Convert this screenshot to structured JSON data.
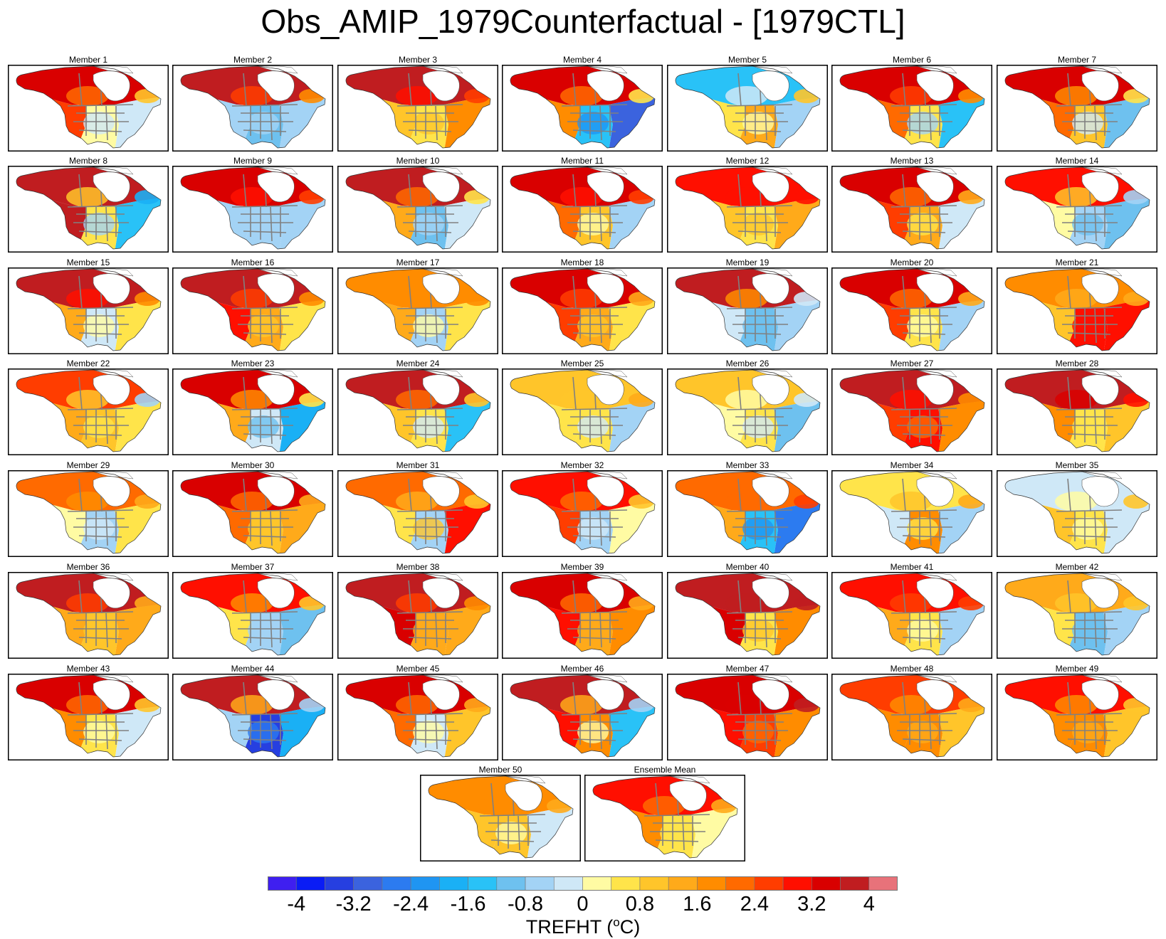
{
  "title": "Obs_AMIP_1979Counterfactual - [1979CTL]",
  "panels": [
    {
      "label": "Member 1",
      "anomaly": {
        "north": 3.5,
        "west": 2.5,
        "south": 0.2,
        "east": -0.4,
        "hudson": 0.8
      }
    },
    {
      "label": "Member 2",
      "anomaly": {
        "north": 3.6,
        "west": -0.8,
        "south": -1.0,
        "east": -0.6,
        "hudson": 1.6
      }
    },
    {
      "label": "Member 3",
      "anomaly": {
        "north": 3.8,
        "west": 1.0,
        "south": 0.6,
        "east": 1.6,
        "hudson": 2.4
      }
    },
    {
      "label": "Member 4",
      "anomaly": {
        "north": 3.4,
        "west": 1.6,
        "south": -1.4,
        "east": -3.2,
        "hudson": 0.6
      }
    },
    {
      "label": "Member 5",
      "anomaly": {
        "north": -1.4,
        "west": 0.4,
        "south": 1.2,
        "east": -0.6,
        "hudson": 0.8
      }
    },
    {
      "label": "Member 6",
      "anomaly": {
        "north": 3.4,
        "west": 2.2,
        "south": 0.4,
        "east": -1.4,
        "hudson": 1.8
      }
    },
    {
      "label": "Member 7",
      "anomaly": {
        "north": 3.2,
        "west": 2.0,
        "south": 1.0,
        "east": -1.2,
        "hudson": 0.6
      }
    },
    {
      "label": "Member 8",
      "anomaly": {
        "north": 3.8,
        "west": 3.8,
        "south": 0.4,
        "east": -1.4,
        "hudson": -1.8
      }
    },
    {
      "label": "Member 9",
      "anomaly": {
        "north": 3.4,
        "west": -0.6,
        "south": -0.8,
        "east": -0.6,
        "hudson": 2.4
      }
    },
    {
      "label": "Member 10",
      "anomaly": {
        "north": 3.9,
        "west": 1.2,
        "south": -1.0,
        "east": -0.4,
        "hudson": 0.6
      }
    },
    {
      "label": "Member 11",
      "anomaly": {
        "north": 3.2,
        "west": 2.0,
        "south": 0.8,
        "east": -0.6,
        "hudson": 2.6
      }
    },
    {
      "label": "Member 12",
      "anomaly": {
        "north": 3.0,
        "west": 0.8,
        "south": 0.4,
        "east": 1.4,
        "hudson": 3.0
      }
    },
    {
      "label": "Member 13",
      "anomaly": {
        "north": 3.4,
        "west": 2.6,
        "south": 1.2,
        "east": -0.2,
        "hudson": 1.2
      }
    },
    {
      "label": "Member 14",
      "anomaly": {
        "north": 2.8,
        "west": 0.2,
        "south": -0.6,
        "east": -1.2,
        "hudson": -0.6
      }
    },
    {
      "label": "Member 15",
      "anomaly": {
        "north": 3.8,
        "west": 1.2,
        "south": -0.4,
        "east": 0.6,
        "hudson": 1.8
      }
    },
    {
      "label": "Member 16",
      "anomaly": {
        "north": 3.9,
        "west": 3.0,
        "south": 1.2,
        "east": 0.6,
        "hudson": 1.6
      }
    },
    {
      "label": "Member 17",
      "anomaly": {
        "north": 1.8,
        "west": 1.2,
        "south": -0.6,
        "east": 0.6,
        "hudson": 1.6
      }
    },
    {
      "label": "Member 18",
      "anomaly": {
        "north": 3.4,
        "west": 2.6,
        "south": 1.2,
        "east": 0.4,
        "hudson": 1.4
      }
    },
    {
      "label": "Member 19",
      "anomaly": {
        "north": 3.6,
        "west": -0.4,
        "south": -1.0,
        "east": -0.8,
        "hudson": -0.4
      }
    },
    {
      "label": "Member 20",
      "anomaly": {
        "north": 3.5,
        "west": 2.4,
        "south": 0.6,
        "east": -0.6,
        "hudson": 1.2
      }
    },
    {
      "label": "Member 21",
      "anomaly": {
        "north": 1.6,
        "west": 1.0,
        "south": 2.8,
        "east": 3.0,
        "hudson": 1.4
      }
    },
    {
      "label": "Member 22",
      "anomaly": {
        "north": 2.4,
        "west": 1.2,
        "south": 1.0,
        "east": 0.4,
        "hudson": -0.6
      }
    },
    {
      "label": "Member 23",
      "anomaly": {
        "north": 3.4,
        "west": 1.2,
        "south": -0.4,
        "east": -2.0,
        "hudson": 0.4
      }
    },
    {
      "label": "Member 24",
      "anomaly": {
        "north": 3.6,
        "west": 1.0,
        "south": 0.6,
        "east": -1.4,
        "hudson": 1.0
      }
    },
    {
      "label": "Member 25",
      "anomaly": {
        "north": 1.0,
        "west": 0.6,
        "south": 0.4,
        "east": -0.6,
        "hudson": 1.2
      }
    },
    {
      "label": "Member 26",
      "anomaly": {
        "north": 0.8,
        "west": 0.2,
        "south": 0.4,
        "east": -1.0,
        "hudson": -0.4
      }
    },
    {
      "label": "Member 27",
      "anomaly": {
        "north": 3.8,
        "west": 2.4,
        "south": 2.8,
        "east": 1.6,
        "hudson": 1.8
      }
    },
    {
      "label": "Member 28",
      "anomaly": {
        "north": 3.8,
        "west": 1.6,
        "south": 0.6,
        "east": 0.8,
        "hudson": 3.0
      }
    },
    {
      "label": "Member 29",
      "anomaly": {
        "north": 2.0,
        "west": 0.2,
        "south": -0.8,
        "east": 0.6,
        "hudson": 1.2
      }
    },
    {
      "label": "Member 30",
      "anomaly": {
        "north": 3.2,
        "west": 2.0,
        "south": 0.8,
        "east": 1.4,
        "hudson": 1.4
      }
    },
    {
      "label": "Member 31",
      "anomaly": {
        "north": 2.0,
        "west": 0.4,
        "south": -0.8,
        "east": 3.0,
        "hudson": 0.8
      }
    },
    {
      "label": "Member 32",
      "anomaly": {
        "north": 3.0,
        "west": 2.6,
        "south": -0.6,
        "east": 0.2,
        "hudson": 1.0
      }
    },
    {
      "label": "Member 33",
      "anomaly": {
        "north": 2.2,
        "west": 1.2,
        "south": -1.4,
        "east": -2.8,
        "hudson": 2.4
      }
    },
    {
      "label": "Member 34",
      "anomaly": {
        "north": 0.4,
        "west": -0.4,
        "south": 1.6,
        "east": -0.6,
        "hudson": 1.4
      }
    },
    {
      "label": "Member 35",
      "anomaly": {
        "north": -0.2,
        "west": 0.8,
        "south": 0.4,
        "east": -0.4,
        "hudson": 0.8
      }
    },
    {
      "label": "Member 36",
      "anomaly": {
        "north": 3.8,
        "west": 1.4,
        "south": 1.0,
        "east": 1.2,
        "hudson": 1.4
      }
    },
    {
      "label": "Member 37",
      "anomaly": {
        "north": 2.8,
        "west": 0.4,
        "south": -0.6,
        "east": -1.0,
        "hudson": 0.8
      }
    },
    {
      "label": "Member 38",
      "anomaly": {
        "north": 3.6,
        "west": 3.2,
        "south": 1.2,
        "east": 1.4,
        "hudson": 1.6
      }
    },
    {
      "label": "Member 39",
      "anomaly": {
        "north": 3.4,
        "west": 2.8,
        "south": 1.2,
        "east": 1.6,
        "hudson": 1.2
      }
    },
    {
      "label": "Member 40",
      "anomaly": {
        "north": 3.8,
        "west": 3.2,
        "south": 0.4,
        "east": 1.8,
        "hudson": 3.6
      }
    },
    {
      "label": "Member 41",
      "anomaly": {
        "north": 2.8,
        "west": 1.4,
        "south": 0.6,
        "east": -0.6,
        "hudson": 2.6
      }
    },
    {
      "label": "Member 42",
      "anomaly": {
        "north": 1.2,
        "west": 0.6,
        "south": -1.0,
        "east": -0.8,
        "hudson": 1.0
      }
    },
    {
      "label": "Member 43",
      "anomaly": {
        "north": 3.2,
        "west": 1.6,
        "south": 0.6,
        "east": -0.4,
        "hudson": 1.0
      }
    },
    {
      "label": "Member 44",
      "anomaly": {
        "north": 3.8,
        "west": -0.6,
        "south": -3.4,
        "east": -2.0,
        "hudson": -0.8
      }
    },
    {
      "label": "Member 45",
      "anomaly": {
        "north": 3.2,
        "west": 2.0,
        "south": -0.2,
        "east": 0.8,
        "hudson": 1.4
      }
    },
    {
      "label": "Member 46",
      "anomaly": {
        "north": 3.6,
        "west": 2.8,
        "south": 1.6,
        "east": -1.6,
        "hudson": -0.6
      }
    },
    {
      "label": "Member 47",
      "anomaly": {
        "north": 3.4,
        "west": 2.8,
        "south": 2.4,
        "east": 1.6,
        "hudson": 3.8
      }
    },
    {
      "label": "Member 48",
      "anomaly": {
        "north": 2.6,
        "west": 1.8,
        "south": 1.6,
        "east": 0.8,
        "hudson": 1.2
      }
    },
    {
      "label": "Member 49",
      "anomaly": {
        "north": 2.8,
        "west": 1.8,
        "south": 1.8,
        "east": 0.8,
        "hudson": 0.8
      }
    },
    {
      "label": "Member 50",
      "anomaly": {
        "north": 1.8,
        "west": 1.0,
        "south": 0.8,
        "east": -0.4,
        "hudson": 1.4
      }
    },
    {
      "label": "Ensemble Mean",
      "anomaly": {
        "north": 2.8,
        "west": 1.6,
        "south": 0.6,
        "east": 0.2,
        "hudson": 1.4
      }
    }
  ],
  "colorbar": {
    "title_prefix": "TREFHT (",
    "title_sup": "o",
    "title_suffix": "C)",
    "labels": [
      "-4",
      "-3.2",
      "-2.4",
      "-1.6",
      "-0.8",
      "0",
      "0.8",
      "1.6",
      "2.4",
      "3.2",
      "4"
    ],
    "label_values": [
      -4,
      -3.2,
      -2.4,
      -1.6,
      -0.8,
      0,
      0.8,
      1.6,
      2.4,
      3.2,
      4
    ],
    "levels": [
      -4.4,
      -4,
      -3.6,
      -3.2,
      -2.8,
      -2.4,
      -2,
      -1.6,
      -1.2,
      -0.8,
      -0.4,
      0,
      0.4,
      0.8,
      1.2,
      1.6,
      2,
      2.4,
      2.8,
      3.2,
      3.6,
      4,
      4.4
    ],
    "colors": [
      "#3f1ff0",
      "#0a1cf5",
      "#263fe0",
      "#3b63de",
      "#2c7bf0",
      "#1f95f2",
      "#1ab0f5",
      "#29c2f7",
      "#6ec1ef",
      "#a3d3f5",
      "#cfe8f7",
      "#fffba3",
      "#ffe44a",
      "#ffc52a",
      "#ffaa1a",
      "#ff8c00",
      "#ff6a00",
      "#ff3d00",
      "#ff0f00",
      "#d90000",
      "#c01d20",
      "#e8727a"
    ],
    "map_lines": "#808080",
    "land_mask": "#ffffff"
  }
}
